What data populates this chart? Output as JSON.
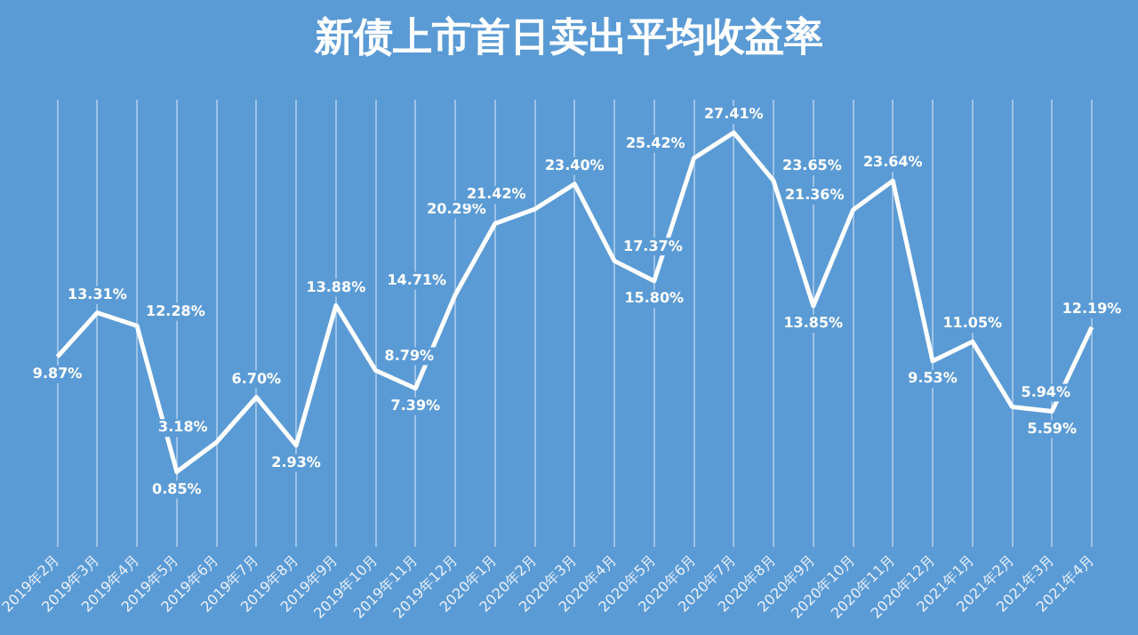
{
  "chart_data": {
    "type": "line",
    "title": "新债上市首日卖出平均收益率",
    "categories": [
      "2019年2月",
      "2019年3月",
      "2019年4月",
      "2019年5月",
      "2019年6月",
      "2019年7月",
      "2019年8月",
      "2019年9月",
      "2019年10月",
      "2019年11月",
      "2019年12月",
      "2020年1月",
      "2020年2月",
      "2020年3月",
      "2020年4月",
      "2020年5月",
      "2020年6月",
      "2020年7月",
      "2020年8月",
      "2020年9月",
      "2020年10月",
      "2020年11月",
      "2020年12月",
      "2021年1月",
      "2021年2月",
      "2021年3月",
      "2021年4月"
    ],
    "series": [
      {
        "color": "#ffffff",
        "values": [
          9.87,
          13.31,
          12.28,
          0.85,
          3.18,
          6.7,
          2.93,
          13.88,
          8.79,
          7.39,
          14.71,
          20.29,
          21.42,
          23.4,
          17.37,
          15.8,
          25.42,
          27.41,
          23.65,
          13.85,
          21.36,
          23.64,
          9.53,
          11.05,
          5.94,
          5.59,
          12.19
        ],
        "value_labels": [
          "9.87%",
          "13.31%",
          "12.28%",
          "0.85%",
          "3.18%",
          "6.70%",
          "2.93%",
          "13.88%",
          "8.79%",
          "7.39%",
          "14.71%",
          "20.29%",
          "21.42%",
          "23.40%",
          "17.37%",
          "15.80%",
          "25.42%",
          "27.41%",
          "23.65%",
          "13.85%",
          "21.36%",
          "23.64%",
          "9.53%",
          "11.05%",
          "5.94%",
          "5.59%",
          "12.19%"
        ]
      }
    ],
    "grid": "x",
    "legend": false,
    "marker": "none",
    "line_style": "solid",
    "tick_labels": "x"
  }
}
